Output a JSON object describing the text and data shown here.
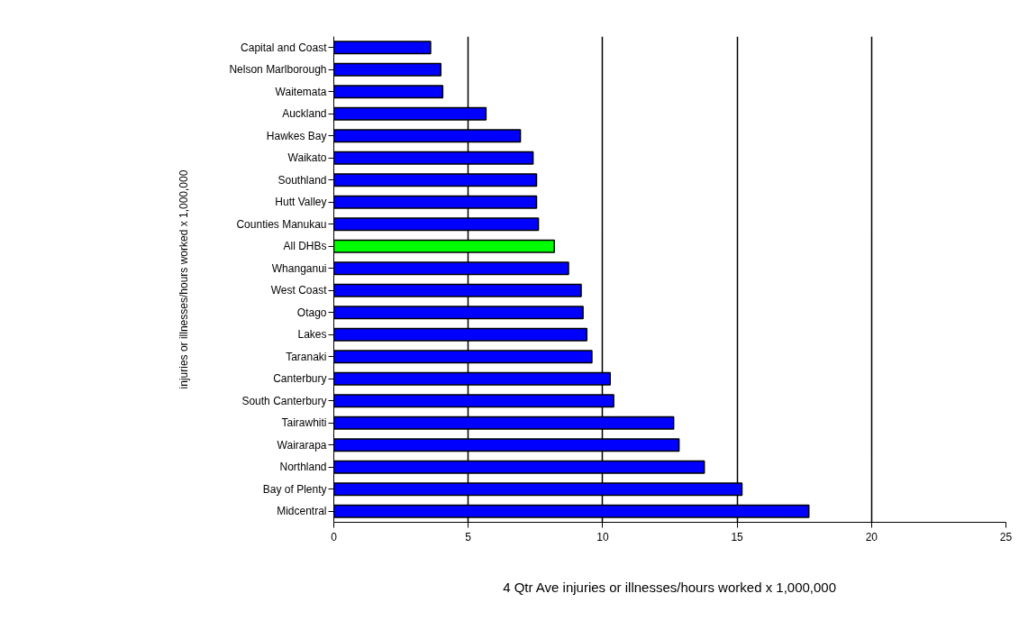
{
  "chart_data": {
    "type": "bar",
    "orientation": "horizontal",
    "xlabel": "4 Qtr Ave injuries or illnesses/hours worked x 1,000,000",
    "ylabel": "injuries or illnesses/hours worked x 1,000,000",
    "categories": [
      "Capital and Coast",
      "Nelson Marlborough",
      "Waitemata",
      "Auckland",
      "Hawkes Bay",
      "Waikato",
      "Southland",
      "Hutt Valley",
      "Counties Manukau",
      "All DHBs",
      "Whanganui",
      "West Coast",
      "Otago",
      "Lakes",
      "Taranaki",
      "Canterbury",
      "South Canterbury",
      "Tairawhiti",
      "Wairarapa",
      "Northland",
      "Bay of Plenty",
      "Midcentral"
    ],
    "values": [
      3.6,
      3.98,
      4.05,
      5.66,
      6.94,
      7.41,
      7.54,
      7.54,
      7.61,
      8.2,
      8.73,
      9.2,
      9.27,
      9.41,
      9.6,
      10.28,
      10.41,
      12.64,
      12.84,
      13.78,
      15.18,
      17.67
    ],
    "colors": [
      "#0000ff",
      "#0000ff",
      "#0000ff",
      "#0000ff",
      "#0000ff",
      "#0000ff",
      "#0000ff",
      "#0000ff",
      "#0000ff",
      "#00ff00",
      "#0000ff",
      "#0000ff",
      "#0000ff",
      "#0000ff",
      "#0000ff",
      "#0000ff",
      "#0000ff",
      "#0000ff",
      "#0000ff",
      "#0000ff",
      "#0000ff",
      "#0000ff"
    ],
    "xlim": [
      0,
      25
    ],
    "xticks": [
      0,
      5,
      10,
      15,
      20,
      25
    ],
    "grid": "x"
  }
}
